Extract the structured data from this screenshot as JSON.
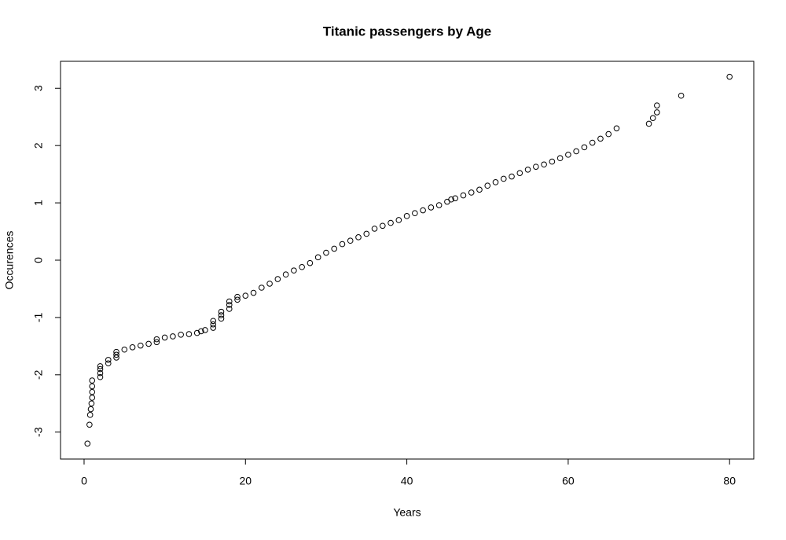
{
  "chart_data": {
    "type": "scatter",
    "title": "Titanic passengers by Age",
    "x_label": "Years",
    "y_label": "Occurences",
    "x": [
      0.42,
      0.67,
      0.75,
      0.83,
      0.92,
      1,
      1,
      1,
      1,
      2,
      2,
      2,
      2,
      3,
      3,
      4,
      4,
      4,
      5,
      6,
      7,
      8,
      9,
      9,
      10,
      11,
      12,
      13,
      14,
      14.5,
      15,
      16,
      16,
      16,
      17,
      17,
      17,
      18,
      18,
      18,
      19,
      19,
      20,
      21,
      22,
      23,
      24,
      25,
      26,
      27,
      28,
      29,
      30,
      31,
      32,
      33,
      34,
      35,
      36,
      37,
      38,
      39,
      40,
      41,
      42,
      43,
      44,
      45,
      45.5,
      46,
      47,
      48,
      49,
      50,
      51,
      52,
      53,
      54,
      55,
      56,
      57,
      58,
      59,
      60,
      61,
      62,
      63,
      64,
      65,
      66,
      70,
      70.5,
      71,
      71,
      74,
      80
    ],
    "y": [
      -3.2,
      -2.87,
      -2.7,
      -2.6,
      -2.5,
      -2.4,
      -2.3,
      -2.2,
      -2.1,
      -2.04,
      -1.97,
      -1.9,
      -1.85,
      -1.8,
      -1.74,
      -1.7,
      -1.65,
      -1.6,
      -1.56,
      -1.52,
      -1.49,
      -1.46,
      -1.43,
      -1.38,
      -1.35,
      -1.33,
      -1.3,
      -1.29,
      -1.27,
      -1.24,
      -1.22,
      -1.18,
      -1.12,
      -1.06,
      -1.02,
      -0.96,
      -0.9,
      -0.85,
      -0.78,
      -0.72,
      -0.69,
      -0.64,
      -0.62,
      -0.57,
      -0.48,
      -0.41,
      -0.33,
      -0.25,
      -0.18,
      -0.12,
      -0.05,
      0.05,
      0.13,
      0.2,
      0.28,
      0.34,
      0.4,
      0.46,
      0.55,
      0.6,
      0.65,
      0.7,
      0.77,
      0.82,
      0.87,
      0.92,
      0.96,
      1.02,
      1.06,
      1.08,
      1.13,
      1.18,
      1.23,
      1.3,
      1.36,
      1.42,
      1.46,
      1.52,
      1.58,
      1.63,
      1.67,
      1.72,
      1.78,
      1.84,
      1.9,
      1.97,
      2.05,
      2.12,
      2.2,
      2.3,
      2.38,
      2.48,
      2.58,
      2.7,
      2.87,
      3.2
    ],
    "color": "#000000",
    "xlim": [
      -2.92,
      83.0
    ],
    "xticks": [
      0,
      20,
      40,
      60,
      80
    ],
    "ylim": [
      -3.47,
      3.47
    ],
    "yticks": [
      -3,
      -2,
      -1,
      0,
      1,
      2,
      3
    ]
  }
}
